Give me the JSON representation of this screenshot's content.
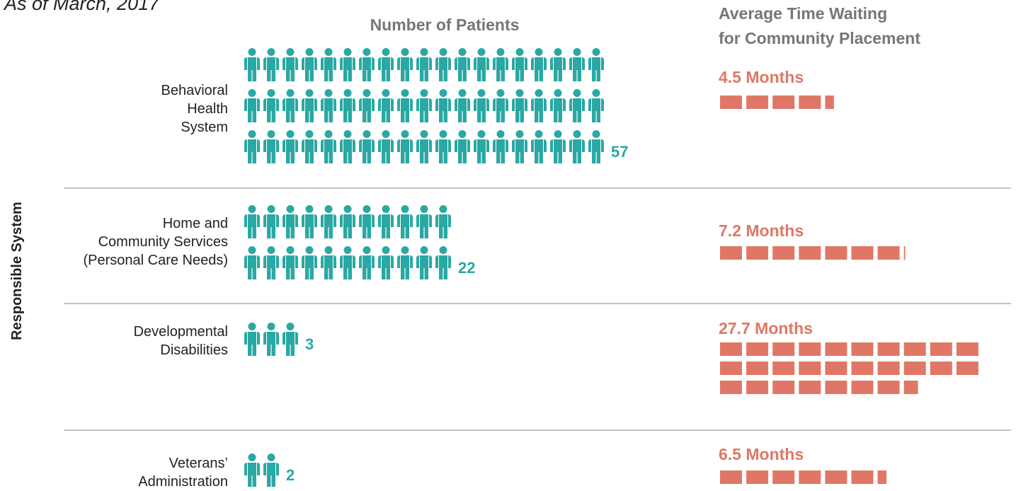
{
  "chart_data": {
    "type": "pictogram",
    "subtitle": "As of March, 2017",
    "y_axis_label": "Responsible System",
    "categories": [
      [
        "Behavioral",
        "Health",
        "System"
      ],
      [
        "Home and",
        "Community Services",
        "(Personal Care Needs)"
      ],
      [
        "Developmental",
        "Disabilities"
      ],
      [
        "Veterans’",
        "Administration"
      ]
    ],
    "series": [
      {
        "name": [
          "Number of Patients"
        ],
        "color": "#2aa8a3",
        "values": [
          57,
          22,
          3,
          2
        ]
      },
      {
        "name": [
          "Average Time Waiting",
          "for Community Placement"
        ],
        "color": "#e07766",
        "values": [
          4.5,
          7.2,
          27.7,
          6.5
        ],
        "value_labels": [
          "4.5 Months",
          "7.2 Months",
          "27.7 Months",
          "6.5 Months"
        ]
      }
    ]
  }
}
